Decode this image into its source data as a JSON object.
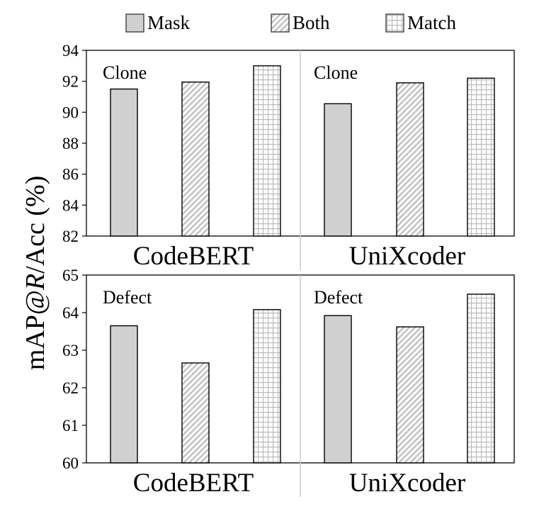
{
  "legend": {
    "position": "top",
    "items": [
      {
        "key": "mask",
        "label": "Mask",
        "pattern": "solid",
        "color": "#d0d0d0"
      },
      {
        "key": "both",
        "label": "Both",
        "pattern": "diagonal-hatch",
        "color": "#bfbfbf"
      },
      {
        "key": "match",
        "label": "Match",
        "pattern": "grid",
        "color": "#bfbfbf"
      }
    ]
  },
  "y_axis_label_parts": [
    "mAP@",
    "R",
    "/Acc (%)"
  ],
  "chart_data": [
    {
      "type": "bar",
      "task": "Clone",
      "categories": [
        "CodeBERT",
        "UniXcoder"
      ],
      "ylim": [
        82,
        94
      ],
      "yticks": [
        82,
        84,
        86,
        88,
        90,
        92,
        94
      ],
      "grid": false,
      "series": [
        {
          "name": "Mask",
          "values": [
            91.5,
            90.55
          ]
        },
        {
          "name": "Both",
          "values": [
            91.95,
            91.9
          ]
        },
        {
          "name": "Match",
          "values": [
            93.0,
            92.2
          ]
        }
      ]
    },
    {
      "type": "bar",
      "task": "Defect",
      "categories": [
        "CodeBERT",
        "UniXcoder"
      ],
      "ylim": [
        60,
        65
      ],
      "yticks": [
        60,
        61,
        62,
        63,
        64,
        65
      ],
      "grid": false,
      "series": [
        {
          "name": "Mask",
          "values": [
            63.65,
            63.92
          ]
        },
        {
          "name": "Both",
          "values": [
            62.66,
            63.62
          ]
        },
        {
          "name": "Match",
          "values": [
            64.08,
            64.49
          ]
        }
      ]
    }
  ]
}
